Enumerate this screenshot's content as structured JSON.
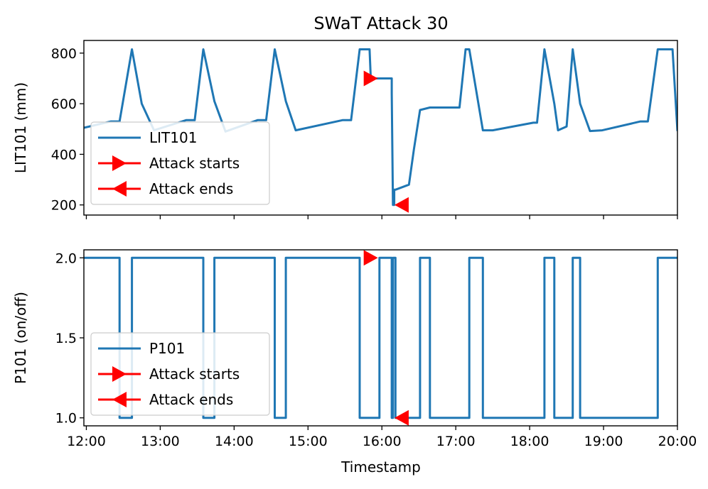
{
  "chart_data": [
    {
      "type": "line",
      "title": "SWaT Attack 30",
      "xlabel": "",
      "ylabel": "LIT101 (mm)",
      "xlim": [
        "11:58",
        "20:00"
      ],
      "ylim": [
        160,
        850
      ],
      "xticks": [
        "12:00",
        "13:00",
        "14:00",
        "15:00",
        "16:00",
        "17:00",
        "18:00",
        "19:00",
        "20:00"
      ],
      "yticks": [
        200,
        400,
        600,
        800
      ],
      "grid": false,
      "legend_position": "lower-left",
      "series": [
        {
          "name": "LIT101",
          "color": "#1f77b4",
          "x": [
            "11:58",
            "12:20",
            "12:27",
            "12:37",
            "12:45",
            "12:55",
            "13:21",
            "13:28",
            "13:35",
            "13:44",
            "13:53",
            "14:19",
            "14:26",
            "14:33",
            "14:42",
            "14:50",
            "15:28",
            "15:35",
            "15:42",
            "15:50",
            "15:51",
            "16:01",
            "16:08",
            "16:08",
            "16:09",
            "16:10",
            "16:10",
            "16:11",
            "16:22",
            "16:26",
            "16:31",
            "16:39",
            "17:03",
            "17:08",
            "17:11",
            "17:22",
            "17:30",
            "18:03",
            "18:06",
            "18:12",
            "18:20",
            "18:23",
            "18:30",
            "18:35",
            "18:41",
            "18:49",
            "18:59",
            "19:30",
            "19:36",
            "19:44",
            "19:56",
            "20:00"
          ],
          "y": [
            505,
            530,
            530,
            815,
            600,
            495,
            535,
            535,
            815,
            610,
            490,
            535,
            535,
            815,
            610,
            495,
            535,
            535,
            815,
            815,
            700,
            700,
            700,
            640,
            200,
            200,
            260,
            260,
            280,
            420,
            575,
            585,
            585,
            815,
            815,
            495,
            495,
            525,
            525,
            815,
            600,
            495,
            510,
            815,
            600,
            492,
            495,
            530,
            530,
            815,
            815,
            492
          ]
        },
        {
          "name": "Attack starts",
          "color": "#ff0000",
          "marker": "triangle-right",
          "x": [
            "15:51"
          ],
          "y": [
            700
          ]
        },
        {
          "name": "Attack ends",
          "color": "#ff0000",
          "marker": "triangle-left",
          "x": [
            "16:16"
          ],
          "y": [
            200
          ]
        }
      ]
    },
    {
      "type": "line",
      "title": "",
      "xlabel": "Timestamp",
      "ylabel": "P101 (on/off)",
      "xlim": [
        "11:58",
        "20:00"
      ],
      "ylim": [
        0.95,
        2.05
      ],
      "xticks": [
        "12:00",
        "13:00",
        "14:00",
        "15:00",
        "16:00",
        "17:00",
        "18:00",
        "19:00",
        "20:00"
      ],
      "yticks": [
        "1.0",
        "1.5",
        "2.0"
      ],
      "grid": false,
      "legend_position": "lower-left",
      "series": [
        {
          "name": "P101",
          "color": "#1f77b4",
          "x": [
            "11:58",
            "12:27",
            "12:27",
            "12:37",
            "12:37",
            "13:35",
            "13:35",
            "13:44",
            "13:44",
            "14:33",
            "14:33",
            "14:42",
            "14:42",
            "15:42",
            "15:42",
            "15:58",
            "15:58",
            "16:08",
            "16:08",
            "16:09",
            "16:09",
            "16:11",
            "16:11",
            "16:31",
            "16:31",
            "16:39",
            "16:39",
            "17:11",
            "17:11",
            "17:22",
            "17:22",
            "18:12",
            "18:12",
            "18:20",
            "18:20",
            "18:35",
            "18:35",
            "18:41",
            "18:41",
            "19:44",
            "19:44",
            "20:00"
          ],
          "y": [
            2,
            2,
            1,
            1,
            2,
            2,
            1,
            1,
            2,
            2,
            1,
            1,
            2,
            2,
            1,
            1,
            2,
            2,
            1,
            1,
            2,
            2,
            1,
            1,
            2,
            2,
            1,
            1,
            2,
            2,
            1,
            1,
            2,
            2,
            1,
            1,
            2,
            2,
            1,
            1,
            2,
            2
          ]
        },
        {
          "name": "Attack starts",
          "color": "#ff0000",
          "marker": "triangle-right",
          "x": [
            "15:51"
          ],
          "y": [
            2.0
          ]
        },
        {
          "name": "Attack ends",
          "color": "#ff0000",
          "marker": "triangle-left",
          "x": [
            "16:16"
          ],
          "y": [
            1.0
          ]
        }
      ]
    }
  ]
}
